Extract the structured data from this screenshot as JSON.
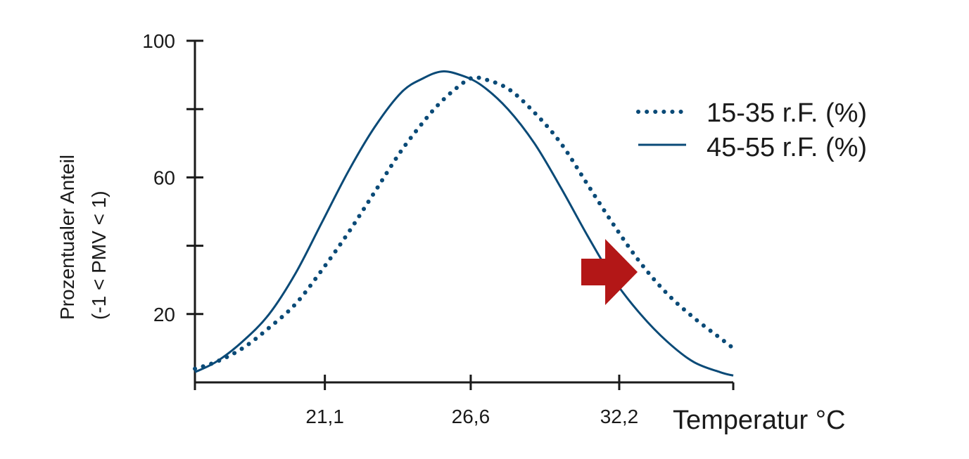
{
  "chart_data": {
    "type": "line",
    "xlabel": "Temperatur °C",
    "ylabel_line1": "Prozentualer Anteil",
    "ylabel_line2": "(-1 < PMV < 1)",
    "xlim": [
      16.2,
      36.5
    ],
    "ylim": [
      0,
      100
    ],
    "x_ticks": [
      {
        "value": 21.1,
        "label": "21,1"
      },
      {
        "value": 26.6,
        "label": "26,6"
      },
      {
        "value": 32.2,
        "label": "32,2"
      }
    ],
    "y_ticks": [
      {
        "value": 20,
        "label": "20"
      },
      {
        "value": 40,
        "label": ""
      },
      {
        "value": 60,
        "label": "60"
      },
      {
        "value": 80,
        "label": ""
      },
      {
        "value": 100,
        "label": "100"
      }
    ],
    "grid": false,
    "legend": "right",
    "series": [
      {
        "name": "15-35 r.F. (%)",
        "style": "dotted",
        "color": "#0a4a77",
        "x": [
          16.2,
          17.0,
          18.0,
          19.0,
          20.0,
          21.0,
          22.0,
          23.0,
          24.0,
          25.0,
          25.6,
          26.2,
          26.6,
          27.0,
          28.0,
          29.0,
          30.0,
          31.0,
          32.0,
          33.0,
          34.0,
          35.0,
          36.0,
          36.5
        ],
        "y": [
          4,
          6,
          10,
          16,
          23,
          33,
          44,
          56,
          68,
          78,
          83,
          87,
          89,
          89,
          86,
          79,
          70,
          58,
          46,
          35,
          26,
          19,
          13,
          10
        ]
      },
      {
        "name": "45-55 r.F. (%)",
        "style": "solid",
        "color": "#0a4a77",
        "x": [
          16.2,
          17.0,
          18.0,
          19.0,
          20.0,
          21.0,
          22.0,
          23.0,
          24.0,
          24.8,
          25.5,
          26.2,
          27.0,
          28.0,
          29.0,
          30.0,
          31.0,
          32.0,
          33.0,
          34.0,
          35.0,
          36.0,
          36.5
        ],
        "y": [
          3,
          6,
          12,
          20,
          32,
          47,
          62,
          75,
          85,
          89,
          91,
          90,
          87,
          80,
          70,
          57,
          43,
          30,
          20,
          12,
          6,
          3,
          2
        ]
      }
    ],
    "annotation": {
      "type": "arrow",
      "color": "#b31717",
      "meaning": "shift-right"
    }
  }
}
